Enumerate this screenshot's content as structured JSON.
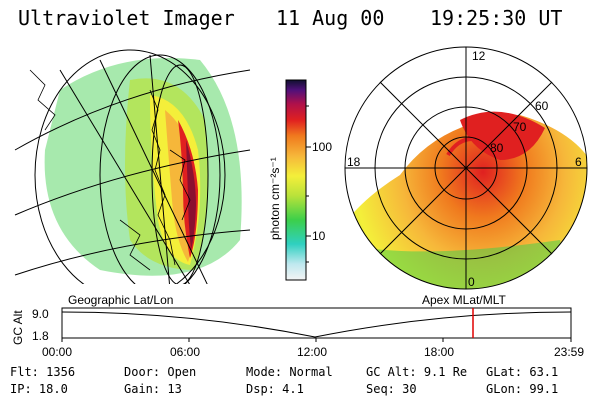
{
  "header": {
    "title": "Ultraviolet Imager",
    "date": "11 Aug 00",
    "time": "19:25:30 UT"
  },
  "colorbar": {
    "unit": "photon cm⁻²s⁻¹",
    "ticks": [
      "100",
      "10"
    ]
  },
  "polar": {
    "hour_labels": [
      "12",
      "18",
      "6",
      "0"
    ],
    "lat_labels": [
      "60",
      "70",
      "80"
    ]
  },
  "projection_labels": {
    "left": "Geographic Lat/Lon",
    "right": "Apex MLat/MLT"
  },
  "altitude_plot": {
    "axis_label": "GC Alt",
    "y_ticks": [
      "9.0",
      "1.8"
    ],
    "x_ticks": [
      "00:00",
      "06:00",
      "12:00",
      "18:00",
      "23:59"
    ],
    "marker_color": "#e00000"
  },
  "info": {
    "row1": [
      {
        "label": "Flt:",
        "value": "1356"
      },
      {
        "label": "Door:",
        "value": "Open"
      },
      {
        "label": "Mode:",
        "value": "Normal"
      },
      {
        "label": "GC Alt:",
        "value": "9.1 Re"
      },
      {
        "label": "GLat:",
        "value": "63.1"
      }
    ],
    "row2": [
      {
        "label": "IP:",
        "value": "18.0"
      },
      {
        "label": "Gain:",
        "value": "13"
      },
      {
        "label": "Dsp:",
        "value": "4.1"
      },
      {
        "label": "Seq:",
        "value": "30"
      },
      {
        "label": "GLon:",
        "value": "99.1"
      }
    ]
  }
}
